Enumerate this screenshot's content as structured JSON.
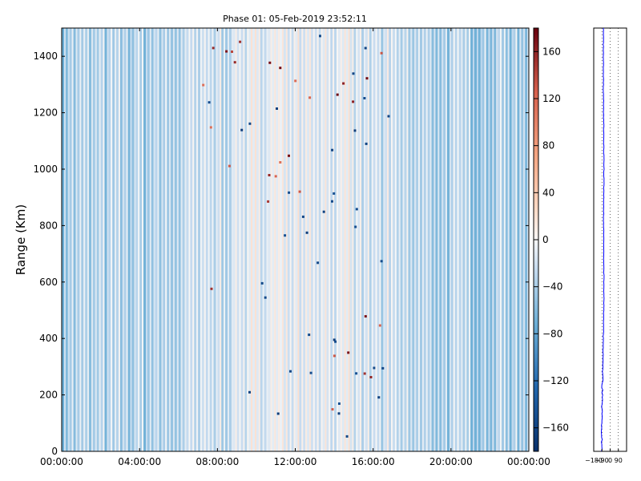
{
  "chart_data": [
    {
      "type": "heatmap",
      "title": "Phase 01: 05-Feb-2019 23:52:11",
      "xlabel": "",
      "ylabel": "Range (Km)",
      "x_ticks": [
        "00:00:00",
        "04:00:00",
        "08:00:00",
        "12:00:00",
        "16:00:00",
        "20:00:00",
        "00:00:00"
      ],
      "x_range_hours": [
        0,
        24
      ],
      "y_ticks": [
        0,
        200,
        400,
        600,
        800,
        1000,
        1200,
        1400
      ],
      "ylim": [
        0,
        1500
      ],
      "colorbar": {
        "ticks": [
          160,
          120,
          80,
          40,
          0,
          -40,
          -80,
          -120,
          -160
        ],
        "range": [
          -180,
          180
        ],
        "colormap": "diverging blue-white-red",
        "colors": {
          "low": "#08306b",
          "mid": "#f7f7f7",
          "high": "#67000d"
        }
      },
      "typical_phase_value": -70
    },
    {
      "type": "line",
      "xlabel": "",
      "ylabel": "",
      "x_ticks": [
        -180,
        -90,
        0,
        90
      ],
      "xlim": [
        -180,
        180
      ],
      "ylim": [
        0,
        1500
      ],
      "x_tick_labels": [
        "−180",
        "−90",
        "0",
        "90"
      ],
      "series_color": "#0000ff",
      "profile": [
        {
          "range": 0,
          "phase": -90
        },
        {
          "range": 100,
          "phase": -92
        },
        {
          "range": 200,
          "phase": -88
        },
        {
          "range": 300,
          "phase": -80
        },
        {
          "range": 400,
          "phase": -75
        },
        {
          "range": 500,
          "phase": -70
        },
        {
          "range": 600,
          "phase": -68
        },
        {
          "range": 700,
          "phase": -70
        },
        {
          "range": 800,
          "phase": -72
        },
        {
          "range": 900,
          "phase": -70
        },
        {
          "range": 1000,
          "phase": -68
        },
        {
          "range": 1100,
          "phase": -70
        },
        {
          "range": 1200,
          "phase": -72
        },
        {
          "range": 1300,
          "phase": -74
        },
        {
          "range": 1400,
          "phase": -73
        },
        {
          "range": 1500,
          "phase": -75
        }
      ]
    }
  ]
}
